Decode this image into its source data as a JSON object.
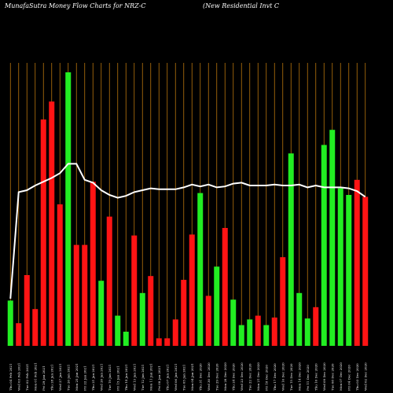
{
  "title_left": "MunafaSutra  Money Flow  Charts for NRZ-C",
  "title_right": "(New  Residential Invt C",
  "chart_data": {
    "type": "bar",
    "title": "MunafaSutra  Money Flow  Charts for NRZ-C",
    "subtitle": "(New  Residential Invt C",
    "categories": [
      "Thu 04 Feb 2021",
      "Wed 03 Feb 2021",
      "Tue 02 Feb 2021",
      "Mon 01 Feb 2021",
      "Fri 29 Jan 2021",
      "Thu 28 Jan 2021",
      "Wed 27 Jan 2021",
      "Tue 26 Jan 2021",
      "Mon 25 Jan 2021",
      "Fri 22 Jan 2021",
      "Thu 21 Jan 2021",
      "Wed 20 Jan 2021",
      "Tue 19 Jan 2021",
      "Fri 15 Jan 2021",
      "Thu 14 Jan 2021",
      "Wed 13 Jan 2021",
      "Tue 12 Jan 2021",
      "Mon 11 Jan 2021",
      "Fri 08 Jan 2021",
      "Thu 07 Jan 2021",
      "Wed 06 Jan 2021",
      "Tue 05 Jan 2021",
      "Mon 04 Jan 2021",
      "Thu 31 Dec 2020",
      "Wed 30 Dec 2020",
      "Tue 29 Dec 2020",
      "Mon 28 Dec 2020",
      "Thu 24 Dec 2020",
      "Wed 23 Dec 2020",
      "Tue 22 Dec 2020",
      "Mon 21 Dec 2020",
      "Fri 18 Dec 2020",
      "Thu 17 Dec 2020",
      "Wed 16 Dec 2020",
      "Tue 15 Dec 2020",
      "Mon 14 Dec 2020",
      "Fri 11 Dec 2020",
      "Thu 10 Dec 2020",
      "Wed 09 Dec 2020",
      "Tue 08 Dec 2020",
      "Mon 07 Dec 2020",
      "Fri 04 Dec 2020",
      "Thu 03 Dec 2020",
      "Wed 02 Dec 2020"
    ],
    "values": [
      48,
      24,
      75,
      39,
      240,
      259,
      150,
      290,
      107,
      107,
      174,
      69,
      137,
      32,
      15,
      117,
      56,
      74,
      8,
      8,
      28,
      70,
      118,
      162,
      53,
      84,
      125,
      49,
      22,
      28,
      32,
      22,
      30,
      94,
      204,
      56,
      29,
      41,
      213,
      229,
      167,
      160,
      176,
      158
    ],
    "colors": [
      "green",
      "red",
      "red",
      "red",
      "red",
      "red",
      "red",
      "green",
      "red",
      "red",
      "red",
      "green",
      "red",
      "green",
      "green",
      "red",
      "green",
      "red",
      "red",
      "red",
      "red",
      "red",
      "red",
      "green",
      "red",
      "green",
      "red",
      "green",
      "green",
      "green",
      "red",
      "green",
      "red",
      "red",
      "green",
      "green",
      "green",
      "red",
      "green",
      "green",
      "green",
      "green",
      "red",
      "red"
    ],
    "bar_colors": {
      "green": "#22ee22",
      "red": "#ff1414"
    },
    "line": {
      "name": "",
      "color": "#ffffff",
      "values": [
        50,
        163,
        165,
        170,
        174,
        178,
        183,
        193,
        193,
        176,
        173,
        165,
        160,
        157,
        159,
        163,
        165,
        167,
        166,
        166,
        166,
        168,
        171,
        169,
        171,
        168,
        169,
        172,
        173,
        170,
        170,
        170,
        171,
        170,
        170,
        171,
        168,
        170,
        168,
        168,
        168,
        167,
        164,
        158
      ]
    },
    "ylim": [
      0,
      300
    ],
    "grid": true,
    "grid_color": "#b8750c",
    "background": "#000000",
    "legend": "none"
  }
}
